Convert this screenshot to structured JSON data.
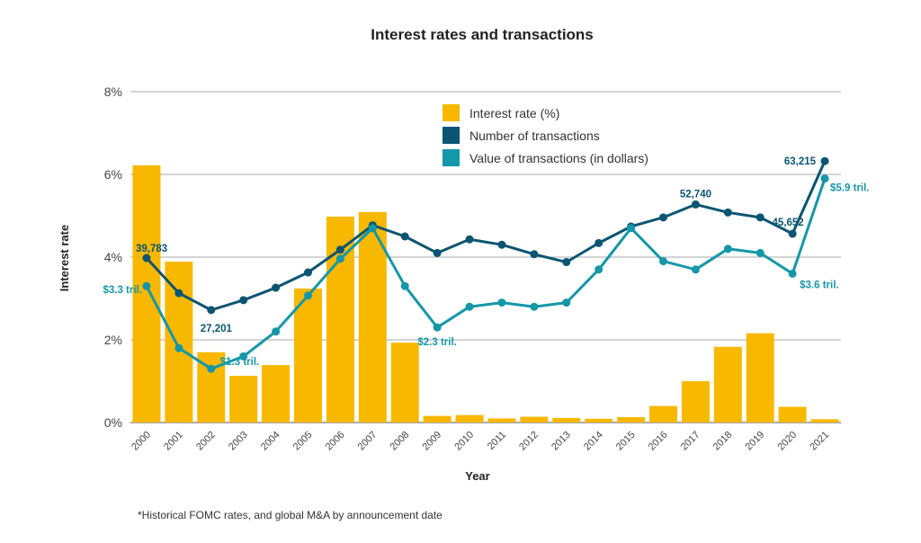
{
  "chart_data": {
    "type": "bar+line",
    "title": "Interest rates and transactions",
    "xlabel": "Year",
    "ylabel": "Interest rate",
    "ylim": [
      0,
      8
    ],
    "yticks": [
      "0%",
      "2%",
      "4%",
      "6%",
      "8%"
    ],
    "grid": true,
    "legend_position": "top-center",
    "categories": [
      "2000",
      "2001",
      "2002",
      "2003",
      "2004",
      "2005",
      "2006",
      "2007",
      "2008",
      "2009",
      "2010",
      "2011",
      "2012",
      "2013",
      "2014",
      "2015",
      "2016",
      "2017",
      "2018",
      "2019",
      "2020",
      "2021"
    ],
    "series": [
      {
        "name": "Interest rate (%)",
        "type": "bar",
        "color": "#F9B800",
        "values": [
          6.22,
          3.89,
          1.7,
          1.13,
          1.39,
          3.24,
          4.98,
          5.09,
          1.93,
          0.16,
          0.18,
          0.1,
          0.14,
          0.11,
          0.09,
          0.13,
          0.4,
          1.0,
          1.83,
          2.16,
          0.38,
          0.08
        ]
      },
      {
        "name": "Number of transactions",
        "type": "line",
        "color": "#0B5572",
        "values": [
          39783,
          31300,
          27201,
          29600,
          32600,
          36300,
          41800,
          47700,
          45000,
          41000,
          44300,
          43000,
          40700,
          38800,
          43400,
          47400,
          49600,
          52740,
          50800,
          49600,
          45652,
          63215
        ]
      },
      {
        "name": "Value of transactions (in dollars)",
        "type": "line",
        "color": "#1497A9",
        "unit": "trillion USD",
        "values": [
          3.3,
          1.8,
          1.3,
          1.6,
          2.2,
          3.07,
          3.96,
          4.7,
          3.3,
          2.3,
          2.8,
          2.9,
          2.8,
          2.9,
          3.7,
          4.7,
          3.9,
          3.7,
          4.2,
          4.1,
          3.6,
          5.9
        ]
      }
    ],
    "annotations": [
      {
        "series": 1,
        "year": "2000",
        "text": "39,783"
      },
      {
        "series": 1,
        "year": "2002",
        "text": "27,201"
      },
      {
        "series": 1,
        "year": "2017",
        "text": "52,740"
      },
      {
        "series": 1,
        "year": "2020",
        "text": "45,652"
      },
      {
        "series": 1,
        "year": "2021",
        "text": "63,215"
      },
      {
        "series": 2,
        "year": "2000",
        "text": "$3.3 tril."
      },
      {
        "series": 2,
        "year": "2002",
        "text": "$1.3 tril."
      },
      {
        "series": 2,
        "year": "2009",
        "text": "$2.3 tril."
      },
      {
        "series": 2,
        "year": "2020",
        "text": "$3.6 tril."
      },
      {
        "series": 2,
        "year": "2021",
        "text": "$5.9 tril."
      }
    ],
    "footnote": "*Historical FOMC rates, and global M&A by announcement date"
  }
}
